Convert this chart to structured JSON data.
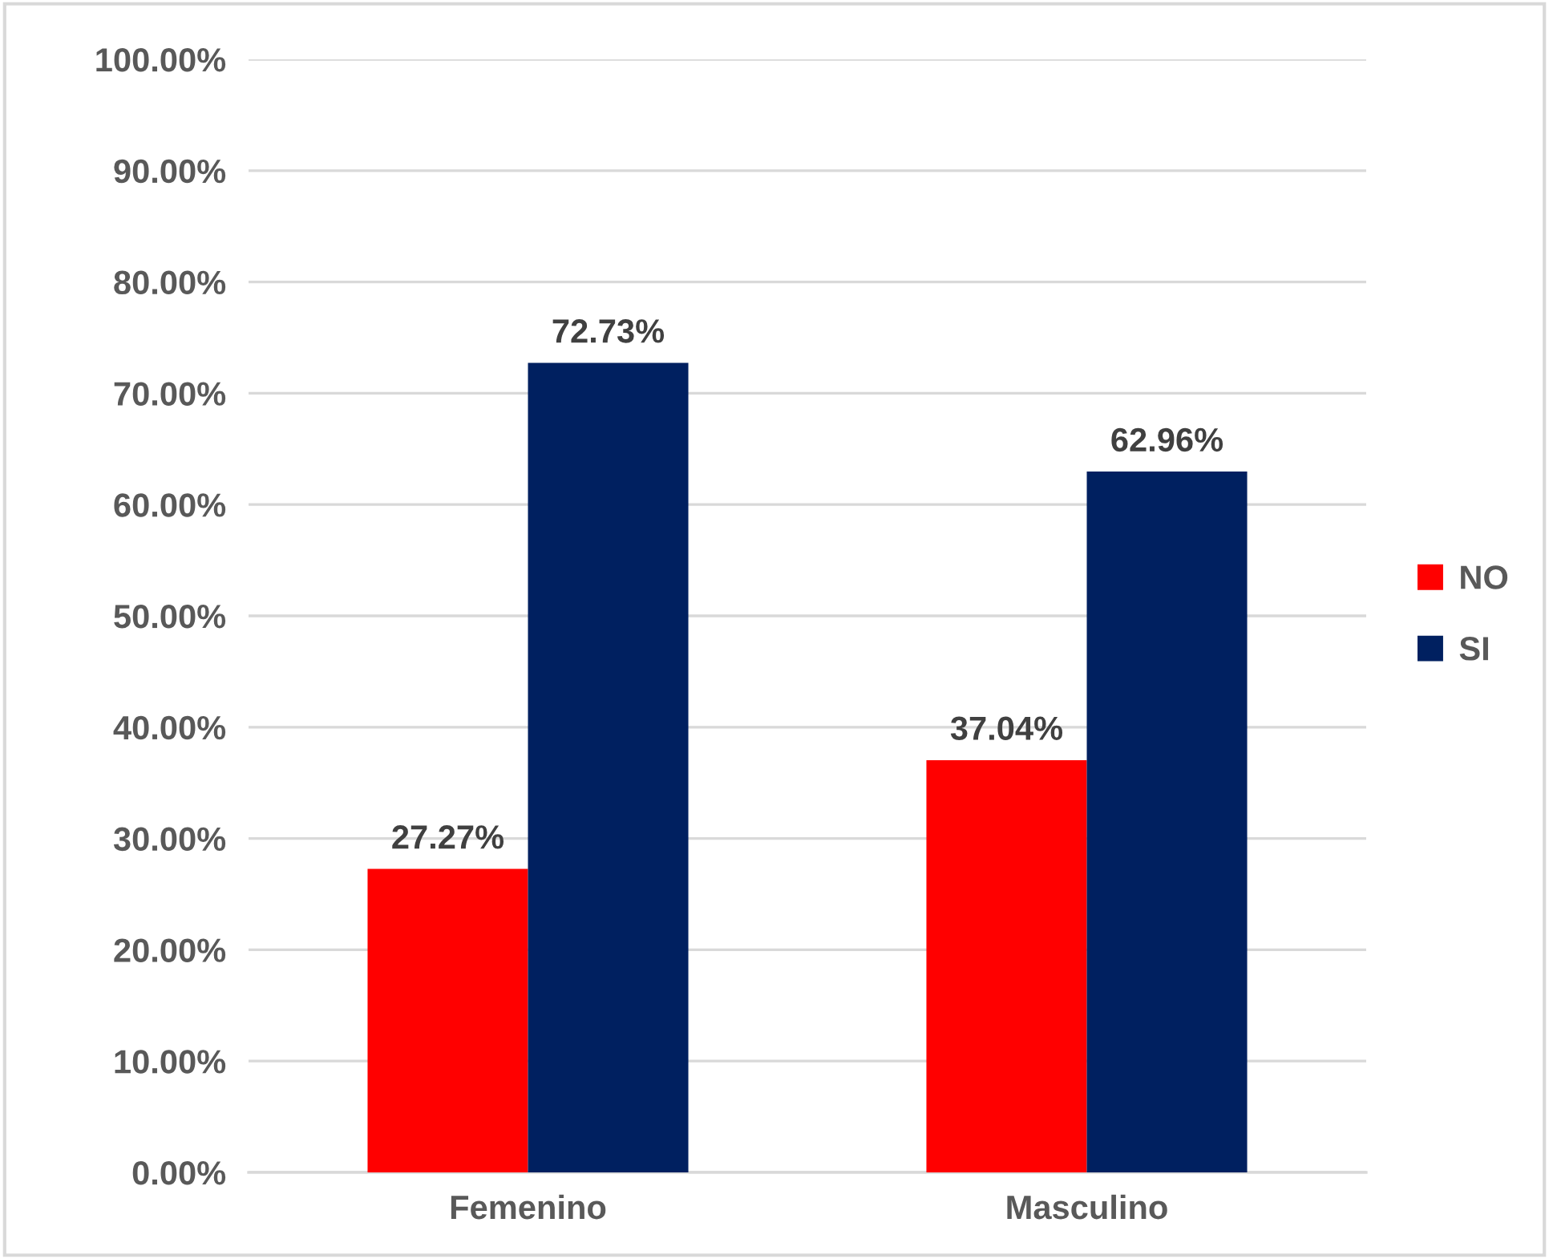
{
  "chart_data": {
    "type": "bar",
    "categories": [
      "Femenino",
      "Masculino"
    ],
    "series": [
      {
        "name": "NO",
        "color": "#ff0000",
        "values": [
          27.27,
          37.04
        ],
        "value_labels": [
          "27.27%",
          "37.04%"
        ]
      },
      {
        "name": "SI",
        "color": "#002060",
        "values": [
          72.73,
          62.96
        ],
        "value_labels": [
          "72.73%",
          "62.96%"
        ]
      }
    ],
    "ylim": [
      0,
      100
    ],
    "yticks": [
      {
        "value": 0,
        "label": "0.00%"
      },
      {
        "value": 10,
        "label": "10.00%"
      },
      {
        "value": 20,
        "label": "20.00%"
      },
      {
        "value": 30,
        "label": "30.00%"
      },
      {
        "value": 40,
        "label": "40.00%"
      },
      {
        "value": 50,
        "label": "50.00%"
      },
      {
        "value": 60,
        "label": "60.00%"
      },
      {
        "value": 70,
        "label": "70.00%"
      },
      {
        "value": 80,
        "label": "80.00%"
      },
      {
        "value": 90,
        "label": "90.00%"
      },
      {
        "value": 100,
        "label": "100.00%"
      }
    ],
    "grid": "y",
    "legend": "right"
  }
}
